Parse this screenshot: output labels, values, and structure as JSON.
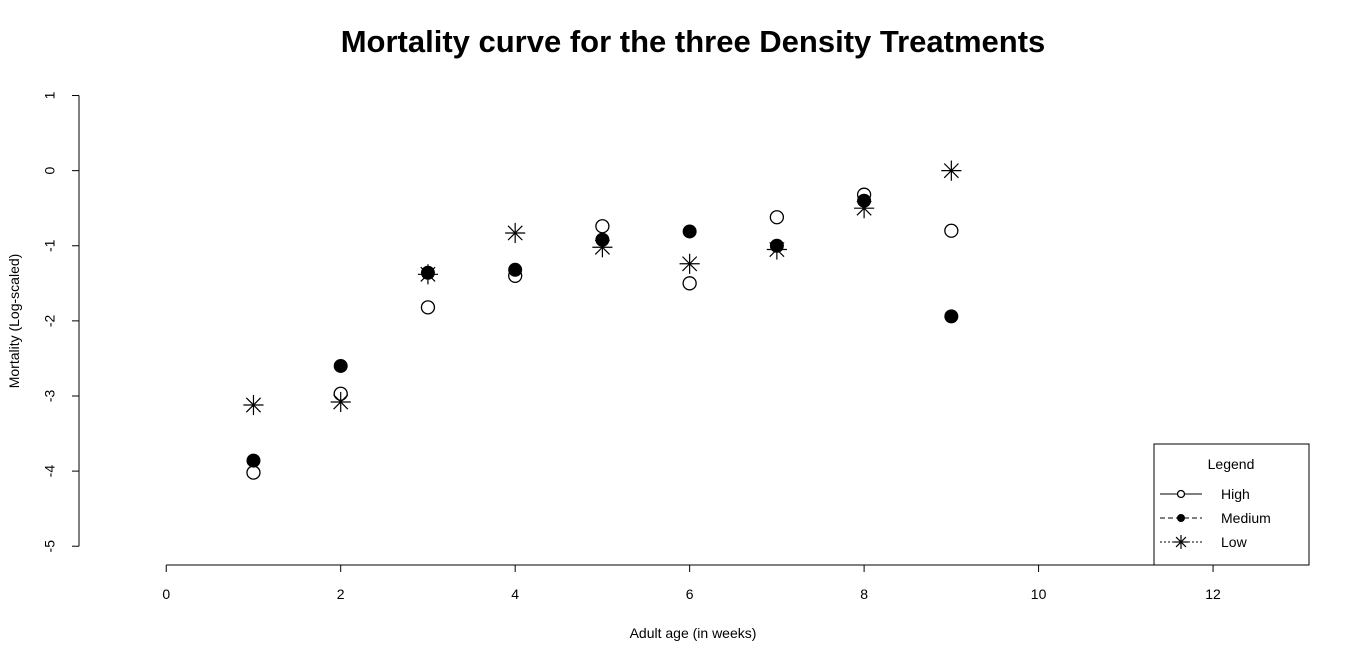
{
  "chart_data": {
    "type": "scatter",
    "title": "Mortality curve for the three Density Treatments",
    "xlabel": "Adult age (in weeks)",
    "ylabel": "Mortality (Log-scaled)",
    "xlim": [
      -1,
      13.1
    ],
    "ylim": [
      -5.25,
      1.22
    ],
    "xticks": [
      0,
      2,
      4,
      6,
      8,
      10,
      12
    ],
    "yticks": [
      -5,
      -4,
      -3,
      -2,
      -1,
      0,
      1
    ],
    "grid": false,
    "legend": {
      "title": "Legend",
      "placement": "bottom-right",
      "entries": [
        "High",
        "Medium",
        "Low"
      ]
    },
    "series": [
      {
        "name": "High",
        "marker": "open-circle",
        "x": [
          1,
          2,
          3,
          4,
          5,
          6,
          7,
          8,
          9
        ],
        "y": [
          -4.02,
          -2.97,
          -1.82,
          -1.4,
          -0.74,
          -1.5,
          -0.62,
          -0.32,
          -0.8
        ]
      },
      {
        "name": "Medium",
        "marker": "filled-circle",
        "x": [
          1,
          2,
          3,
          4,
          5,
          6,
          7,
          8,
          9
        ],
        "y": [
          -3.86,
          -2.6,
          -1.36,
          -1.32,
          -0.92,
          -0.81,
          -1.0,
          -0.4,
          -1.94
        ]
      },
      {
        "name": "Low",
        "marker": "star",
        "x": [
          1,
          2,
          3,
          4,
          5,
          6,
          7,
          8,
          9
        ],
        "y": [
          -3.12,
          -3.08,
          -1.38,
          -0.83,
          -1.02,
          -1.24,
          -1.05,
          -0.5,
          0.0
        ]
      }
    ]
  }
}
